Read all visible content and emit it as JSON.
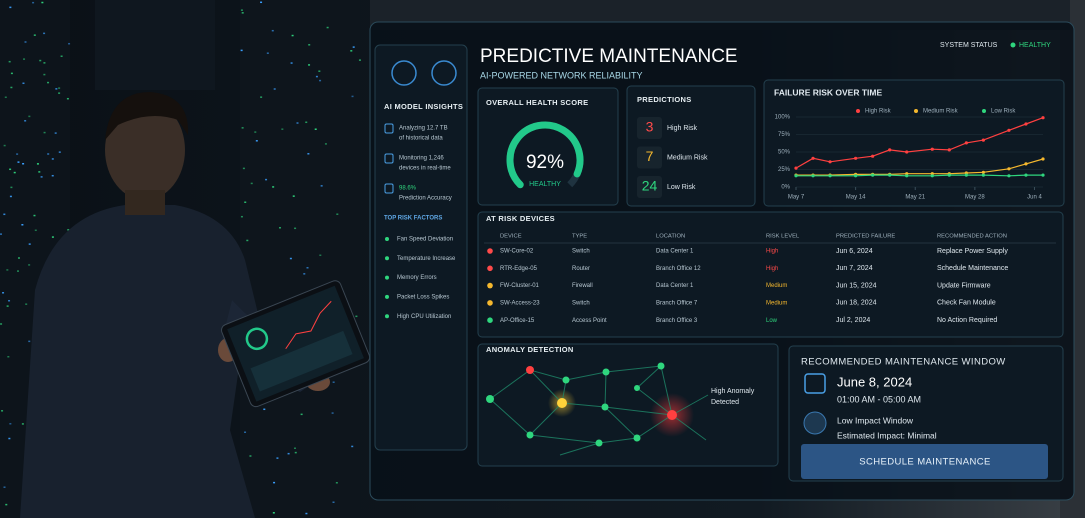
{
  "header": {
    "title": "PREDICTIVE MAINTENANCE",
    "subtitle": "AI-POWERED NETWORK RELIABILITY",
    "status_label": "SYSTEM STATUS",
    "status": "HEALTHY"
  },
  "sidebar": {
    "title": "AI MODEL INSIGHTS",
    "insights": [
      [
        "Analyzing 12.7 TB",
        "of historical data"
      ],
      [
        "Monitoring 1,246",
        "devices in real-time"
      ],
      [
        "98.6%",
        "Prediction Accuracy"
      ]
    ],
    "factors_title": "TOP RISK FACTORS",
    "factors": [
      "Fan Speed Deviation",
      "Temperature Increase",
      "Memory Errors",
      "Packet Loss Spikes",
      "High CPU Utilization"
    ]
  },
  "health": {
    "title": "OVERALL HEALTH SCORE",
    "score": 92,
    "score_label": "92%",
    "score_range": [
      0,
      100
    ],
    "status": "HEALTHY",
    "color": "#22c98a"
  },
  "predictions": {
    "title": "PREDICTIONS",
    "items": [
      {
        "count": "3",
        "label": "High Risk",
        "color": "#ff4a4a"
      },
      {
        "count": "7",
        "label": "Medium Risk",
        "color": "#f5b82e"
      },
      {
        "count": "24",
        "label": "Low Risk",
        "color": "#2fd67e"
      }
    ]
  },
  "chart_data": {
    "type": "line",
    "title": "FAILURE RISK OVER TIME",
    "x": [
      0,
      2,
      4,
      7,
      9,
      11,
      13,
      16,
      18,
      20,
      22,
      25,
      27,
      29
    ],
    "xlim": [
      0,
      29
    ],
    "xticks": [
      {
        "value": 0,
        "label": "May 7"
      },
      {
        "value": 7,
        "label": "May 14"
      },
      {
        "value": 14,
        "label": "May 21"
      },
      {
        "value": 21,
        "label": "May 28"
      },
      {
        "value": 28,
        "label": "Jun 4"
      }
    ],
    "ylim": [
      0,
      100
    ],
    "yticks": [
      {
        "value": 0,
        "label": "0%"
      },
      {
        "value": 25,
        "label": "25%"
      },
      {
        "value": 50,
        "label": "50%"
      },
      {
        "value": 75,
        "label": "75%"
      },
      {
        "value": 100,
        "label": "100%"
      }
    ],
    "grid": true,
    "series": [
      {
        "name": "High Risk",
        "color": "#ff4040",
        "values": [
          27,
          41,
          36,
          41,
          44,
          53,
          50,
          54,
          53,
          63,
          67,
          81,
          90,
          99
        ]
      },
      {
        "name": "Medium Risk",
        "color": "#f5b82e",
        "values": [
          17,
          17,
          17,
          18,
          18,
          18,
          19,
          19,
          19,
          20,
          21,
          26,
          33,
          40
        ]
      },
      {
        "name": "Low Risk",
        "color": "#2fd67e",
        "values": [
          16,
          16,
          16,
          16,
          17,
          17,
          16,
          16,
          17,
          17,
          17,
          16,
          17,
          17
        ]
      }
    ]
  },
  "devices": {
    "title": "AT RISK DEVICES",
    "columns": [
      "DEVICE",
      "TYPE",
      "LOCATION",
      "RISK LEVEL",
      "PREDICTED FAILURE",
      "RECOMMENDED ACTION"
    ],
    "rows": [
      {
        "cells": [
          "SW-Core-02",
          "Switch",
          "Data Center 1",
          "High",
          "Jun 6, 2024",
          "Replace Power Supply"
        ],
        "color": "#ff4a4a"
      },
      {
        "cells": [
          "RTR-Edge-05",
          "Router",
          "Branch Office 12",
          "High",
          "Jun 7, 2024",
          "Schedule Maintenance"
        ],
        "color": "#ff4a4a"
      },
      {
        "cells": [
          "FW-Cluster-01",
          "Firewall",
          "Data Center 1",
          "Medium",
          "Jun 15, 2024",
          "Update Firmware"
        ],
        "color": "#f5b82e"
      },
      {
        "cells": [
          "SW-Access-23",
          "Switch",
          "Branch Office 7",
          "Medium",
          "Jun 18, 2024",
          "Check Fan Module"
        ],
        "color": "#f5b82e"
      },
      {
        "cells": [
          "AP-Office-15",
          "Access Point",
          "Branch Office 3",
          "Low",
          "Jul 2, 2024",
          "No Action Required"
        ],
        "color": "#2fd67e"
      }
    ]
  },
  "anomaly": {
    "title": "ANOMALY DETECTION",
    "annotation": [
      "High Anomaly",
      "Detected"
    ]
  },
  "maintenance": {
    "title": "RECOMMENDED MAINTENANCE WINDOW",
    "date": "June 8, 2024",
    "time": "01:00 AM - 05:00 AM",
    "impact": "Low Impact Window",
    "impact_detail": "Estimated Impact: Minimal",
    "button": "SCHEDULE MAINTENANCE"
  }
}
